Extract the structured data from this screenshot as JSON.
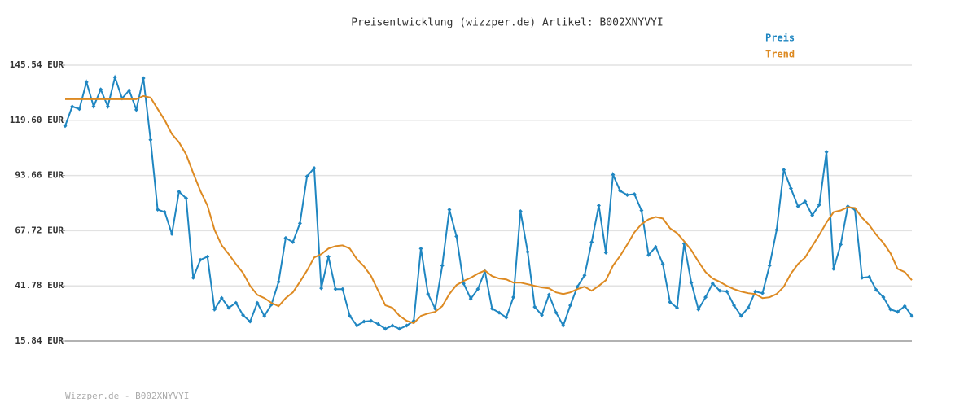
{
  "chart_data": {
    "type": "line",
    "title": "Preisentwicklung (wizzper.de) Artikel: B002XNYVYI",
    "footer": "Wizzper.de - B002XNYVYI",
    "ylim": [
      15.84,
      145.54
    ],
    "yticks": [
      {
        "value": 15.84,
        "label": "15.84 EUR"
      },
      {
        "value": 41.78,
        "label": "41.78 EUR"
      },
      {
        "value": 67.72,
        "label": "67.72 EUR"
      },
      {
        "value": 93.66,
        "label": "93.66 EUR"
      },
      {
        "value": 119.6,
        "label": "119.60 EUR"
      },
      {
        "value": 145.54,
        "label": "145.54 EUR"
      }
    ],
    "grid": true,
    "legend": "top-right",
    "series": [
      {
        "name": "Preis",
        "color": "#1f86c1",
        "markers": true,
        "values": [
          116.93,
          126.09,
          124.94,
          137.53,
          126.09,
          134.1,
          126.09,
          139.82,
          129.9,
          133.71,
          124.56,
          139.44,
          110.44,
          77.64,
          76.49,
          66.19,
          86.03,
          82.98,
          45.59,
          53.99,
          55.51,
          30.72,
          36.06,
          31.48,
          33.77,
          28.05,
          25.0,
          33.77,
          27.67,
          33.0,
          43.69,
          64.29,
          62.38,
          71.15,
          93.28,
          97.09,
          40.64,
          55.51,
          40.26,
          40.26,
          27.67,
          23.09,
          25.0,
          25.38,
          23.85,
          21.56,
          23.09,
          21.56,
          23.09,
          25.38,
          59.33,
          37.97,
          31.1,
          51.32,
          77.64,
          65.05,
          42.92,
          35.68,
          40.26,
          48.65,
          31.1,
          29.19,
          26.9,
          36.44,
          76.87,
          57.8,
          31.86,
          28.05,
          37.58,
          29.19,
          23.09,
          32.63,
          41.4,
          46.74,
          62.38,
          79.54,
          57.42,
          94.04,
          86.41,
          84.5,
          84.89,
          77.26,
          56.28,
          60.09,
          52.08,
          34.15,
          31.48,
          61.62,
          43.31,
          30.72,
          36.44,
          42.92,
          39.49,
          39.11,
          32.63,
          27.67,
          31.48,
          39.11,
          38.35,
          51.32,
          68.1,
          96.33,
          87.56,
          79.16,
          81.45,
          74.97,
          79.93,
          104.72,
          49.79,
          61.23,
          79.16,
          77.64,
          45.59,
          45.97,
          39.87,
          36.44,
          30.72,
          29.57,
          32.24,
          27.67
        ]
      },
      {
        "name": "Trend",
        "color": "#dd8a22",
        "markers": false,
        "values": [
          129.52,
          129.52,
          129.52,
          129.52,
          129.52,
          129.52,
          129.52,
          129.52,
          129.52,
          129.52,
          129.52,
          131.04,
          130.28,
          124.94,
          119.6,
          113.12,
          109.3,
          103.58,
          94.8,
          86.41,
          79.54,
          68.1,
          60.85,
          56.66,
          52.08,
          47.88,
          41.78,
          37.58,
          36.06,
          33.77,
          32.24,
          36.06,
          38.73,
          43.69,
          49.03,
          55.13,
          56.66,
          59.33,
          60.47,
          60.85,
          59.33,
          54.37,
          50.93,
          46.36,
          39.49,
          32.63,
          31.48,
          27.67,
          25.38,
          24.23,
          27.67,
          28.81,
          29.57,
          32.24,
          37.97,
          42.16,
          44.07,
          45.59,
          47.5,
          49.03,
          46.36,
          45.21,
          44.83,
          43.31,
          43.31,
          42.54,
          41.78,
          41.02,
          40.64,
          38.73,
          37.97,
          38.73,
          40.26,
          41.4,
          39.49,
          41.78,
          44.45,
          51.32,
          55.89,
          61.23,
          66.96,
          70.77,
          73.06,
          74.2,
          73.44,
          68.86,
          66.57,
          62.76,
          58.56,
          53.22,
          48.27,
          45.21,
          43.69,
          41.78,
          40.26,
          39.11,
          38.35,
          37.97,
          36.06,
          36.44,
          37.97,
          41.4,
          47.5,
          52.08,
          55.13,
          60.47,
          65.81,
          71.54,
          76.49,
          77.26,
          78.78,
          78.4,
          73.82,
          70.39,
          65.81,
          62.0,
          57.04,
          49.79,
          48.27,
          44.45
        ]
      }
    ]
  }
}
